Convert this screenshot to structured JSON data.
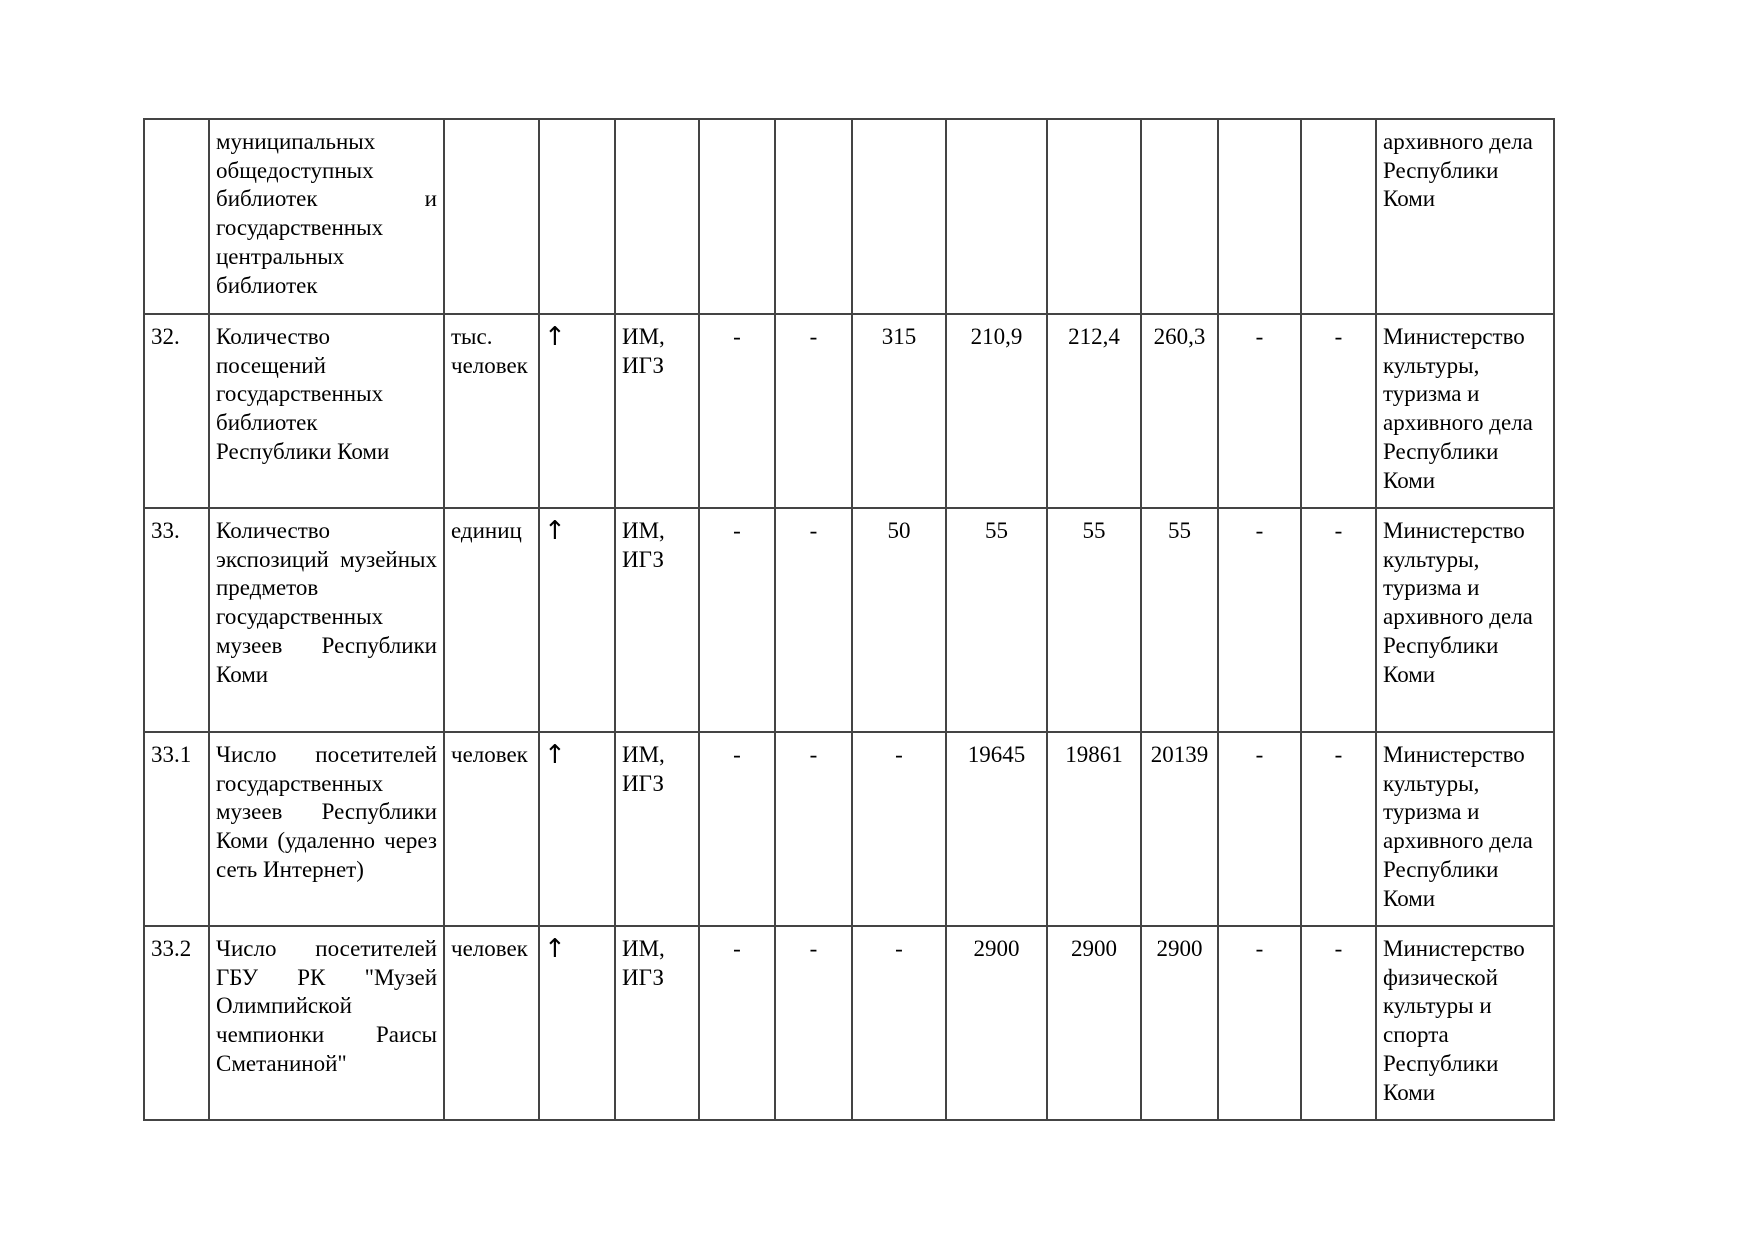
{
  "rows": [
    {
      "num": "",
      "name": "муниципальных общедоступных библиотек и государственных центральных библиотек",
      "unit": "",
      "trend": "",
      "source": "",
      "v1": "",
      "v2": "",
      "v3": "",
      "v4": "",
      "v5": "",
      "v6": "",
      "v7": "",
      "v8": "",
      "responsible": "архивного дела Республики Коми"
    },
    {
      "num": "32.",
      "name": "Количество посещений государственных библиотек Республики Коми",
      "unit": "тыс. человек",
      "trend": "↑",
      "source": "ИМ, ИГЗ",
      "v1": "-",
      "v2": "-",
      "v3": "315",
      "v4": "210,9",
      "v5": "212,4",
      "v6": "260,3",
      "v7": "-",
      "v8": "-",
      "responsible": "Министерство культуры, туризма и архивного дела Республики Коми"
    },
    {
      "num": "33.",
      "name": "Количество экспозиций музейных предметов государственных музеев Республики Коми",
      "unit": "единиц",
      "trend": "↑",
      "source": "ИМ, ИГЗ",
      "v1": "-",
      "v2": "-",
      "v3": "50",
      "v4": "55",
      "v5": "55",
      "v6": "55",
      "v7": "-",
      "v8": "-",
      "responsible": "Министерство культуры, туризма и архивного дела Республики Коми"
    },
    {
      "num": "33.1",
      "name": "Число посетителей государственных музеев Республики Коми (удаленно через сеть Интернет)",
      "unit": "человек",
      "trend": "↑",
      "source": "ИМ, ИГЗ",
      "v1": "-",
      "v2": "-",
      "v3": "-",
      "v4": "19645",
      "v5": "19861",
      "v6": "20139",
      "v7": "-",
      "v8": "-",
      "responsible": "Министерство культуры, туризма и архивного дела Республики Коми"
    },
    {
      "num": "33.2",
      "name": "Число посетителей ГБУ РК \"Музей Олимпийской чемпионки Раисы Сметаниной\"",
      "unit": "человек",
      "trend": "↑",
      "source": "ИМ, ИГЗ",
      "v1": "-",
      "v2": "-",
      "v3": "-",
      "v4": "2900",
      "v5": "2900",
      "v6": "2900",
      "v7": "-",
      "v8": "-",
      "responsible": "Министерство физической культуры и спорта Республики Коми"
    }
  ]
}
